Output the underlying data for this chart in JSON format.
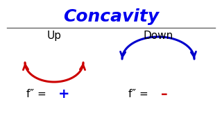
{
  "title": "Concavity",
  "title_color": "#0000ee",
  "title_fontsize": 18,
  "title_fontstyle": "italic",
  "background_color": "#ffffff",
  "line_color": "#666666",
  "up_label": "Up",
  "down_label": "Down",
  "label_fontsize": 11,
  "label_color": "#000000",
  "concave_up_color": "#cc0000",
  "concave_down_color": "#0000cc",
  "formula_color": "#000000",
  "formula_fontsize": 11,
  "plus_color": "#0000ee",
  "minus_color": "#cc0000",
  "sign_fontsize": 14
}
